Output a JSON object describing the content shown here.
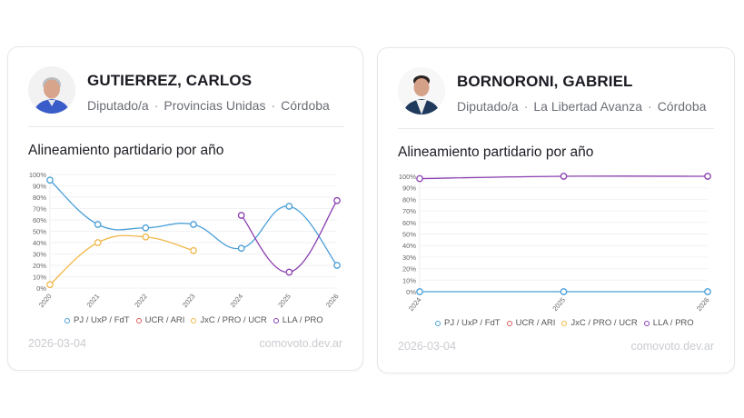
{
  "cards": [
    {
      "name": "GUTIERREZ, CARLOS",
      "role": "Diputado/a",
      "party": "Provincias Unidas",
      "province": "Córdoba",
      "chart_title": "Alineamiento partidario por año",
      "footer_date": "2026-03-04",
      "footer_site": "comovoto.dev.ar"
    },
    {
      "name": "BORNORONI, GABRIEL",
      "role": "Diputado/a",
      "party": "La Libertad Avanza",
      "province": "Córdoba",
      "chart_title": "Alineamiento partidario por año",
      "footer_date": "2026-03-04",
      "footer_site": "comovoto.dev.ar"
    }
  ],
  "legend": [
    {
      "label": "PJ / UxP / FdT",
      "color": "#4a9fd8"
    },
    {
      "label": "UCR / ARI",
      "color": "#e05a5a"
    },
    {
      "label": "JxC / PRO / UCR",
      "color": "#f0b84a"
    },
    {
      "label": "LLA / PRO",
      "color": "#8a3fb0"
    }
  ],
  "chart_data": [
    {
      "type": "line",
      "title": "Alineamiento partidario por año",
      "xlabel": "",
      "ylabel": "",
      "categories": [
        "2020",
        "2021",
        "2022",
        "2023",
        "2024",
        "2025",
        "2026"
      ],
      "yticks": [
        "0%",
        "10%",
        "20%",
        "30%",
        "40%",
        "50%",
        "60%",
        "70%",
        "80%",
        "90%",
        "100%"
      ],
      "ylim": [
        0,
        100
      ],
      "grid": true,
      "legend_position": "bottom",
      "series": [
        {
          "name": "PJ / UxP / FdT",
          "values": [
            95,
            56,
            53,
            56,
            35,
            72,
            20
          ]
        },
        {
          "name": "UCR / ARI",
          "values": [
            null,
            null,
            null,
            null,
            null,
            null,
            null
          ]
        },
        {
          "name": "JxC / PRO / UCR",
          "values": [
            3,
            40,
            45,
            33,
            null,
            null,
            null
          ]
        },
        {
          "name": "LLA / PRO",
          "values": [
            null,
            null,
            null,
            null,
            64,
            14,
            77
          ]
        }
      ]
    },
    {
      "type": "line",
      "title": "Alineamiento partidario por año",
      "xlabel": "",
      "ylabel": "",
      "categories": [
        "2024",
        "2025",
        "2026"
      ],
      "yticks": [
        "0%",
        "10%",
        "20%",
        "30%",
        "40%",
        "50%",
        "60%",
        "70%",
        "80%",
        "90%",
        "100%"
      ],
      "ylim": [
        0,
        100
      ],
      "grid": true,
      "legend_position": "bottom",
      "series": [
        {
          "name": "PJ / UxP / FdT",
          "values": [
            0,
            0,
            0
          ]
        },
        {
          "name": "UCR / ARI",
          "values": [
            null,
            null,
            null
          ]
        },
        {
          "name": "JxC / PRO / UCR",
          "values": [
            null,
            null,
            null
          ]
        },
        {
          "name": "LLA / PRO",
          "values": [
            98,
            100,
            100
          ]
        }
      ]
    }
  ]
}
